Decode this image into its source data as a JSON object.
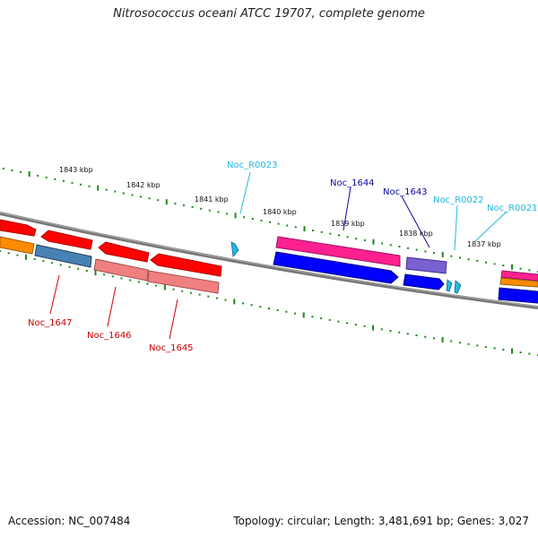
{
  "title": "Nitrosococcus oceani ATCC 19707, complete genome",
  "footer": {
    "accession": "Accession: NC_007484",
    "topology": "Topology: circular; Length: 3,481,691 bp; Genes: 3,027"
  },
  "ticks": [
    "1843 kbp",
    "1842 kbp",
    "1841 kbp",
    "1840 kbp",
    "1839 kbp",
    "1838 kbp",
    "1837 kbp"
  ],
  "labels": {
    "top": [
      {
        "text": "Noc_R0023",
        "color": "#20b8e0"
      },
      {
        "text": "Noc_1644",
        "color": "#0a0aa0"
      },
      {
        "text": "Noc_1643",
        "color": "#0a0aa0"
      },
      {
        "text": "Noc_R0022",
        "color": "#20b8e0"
      },
      {
        "text": "Noc_R0021",
        "color": "#20b8e0"
      }
    ],
    "bottom": [
      {
        "text": "Noc_1647",
        "color": "#cc0000"
      },
      {
        "text": "Noc_1646",
        "color": "#cc0000"
      },
      {
        "text": "Noc_1645",
        "color": "#cc0000"
      }
    ]
  },
  "colors": {
    "backbone": "#777777",
    "dots": "#1a8a1a",
    "red": "#ff0000",
    "pink": "#ff2090",
    "blue": "#0000ff",
    "purple": "#7a60d0",
    "orange": "#ff8c00",
    "steel": "#4682b4",
    "salmon": "#f08080",
    "rna": "#20b8e0"
  }
}
